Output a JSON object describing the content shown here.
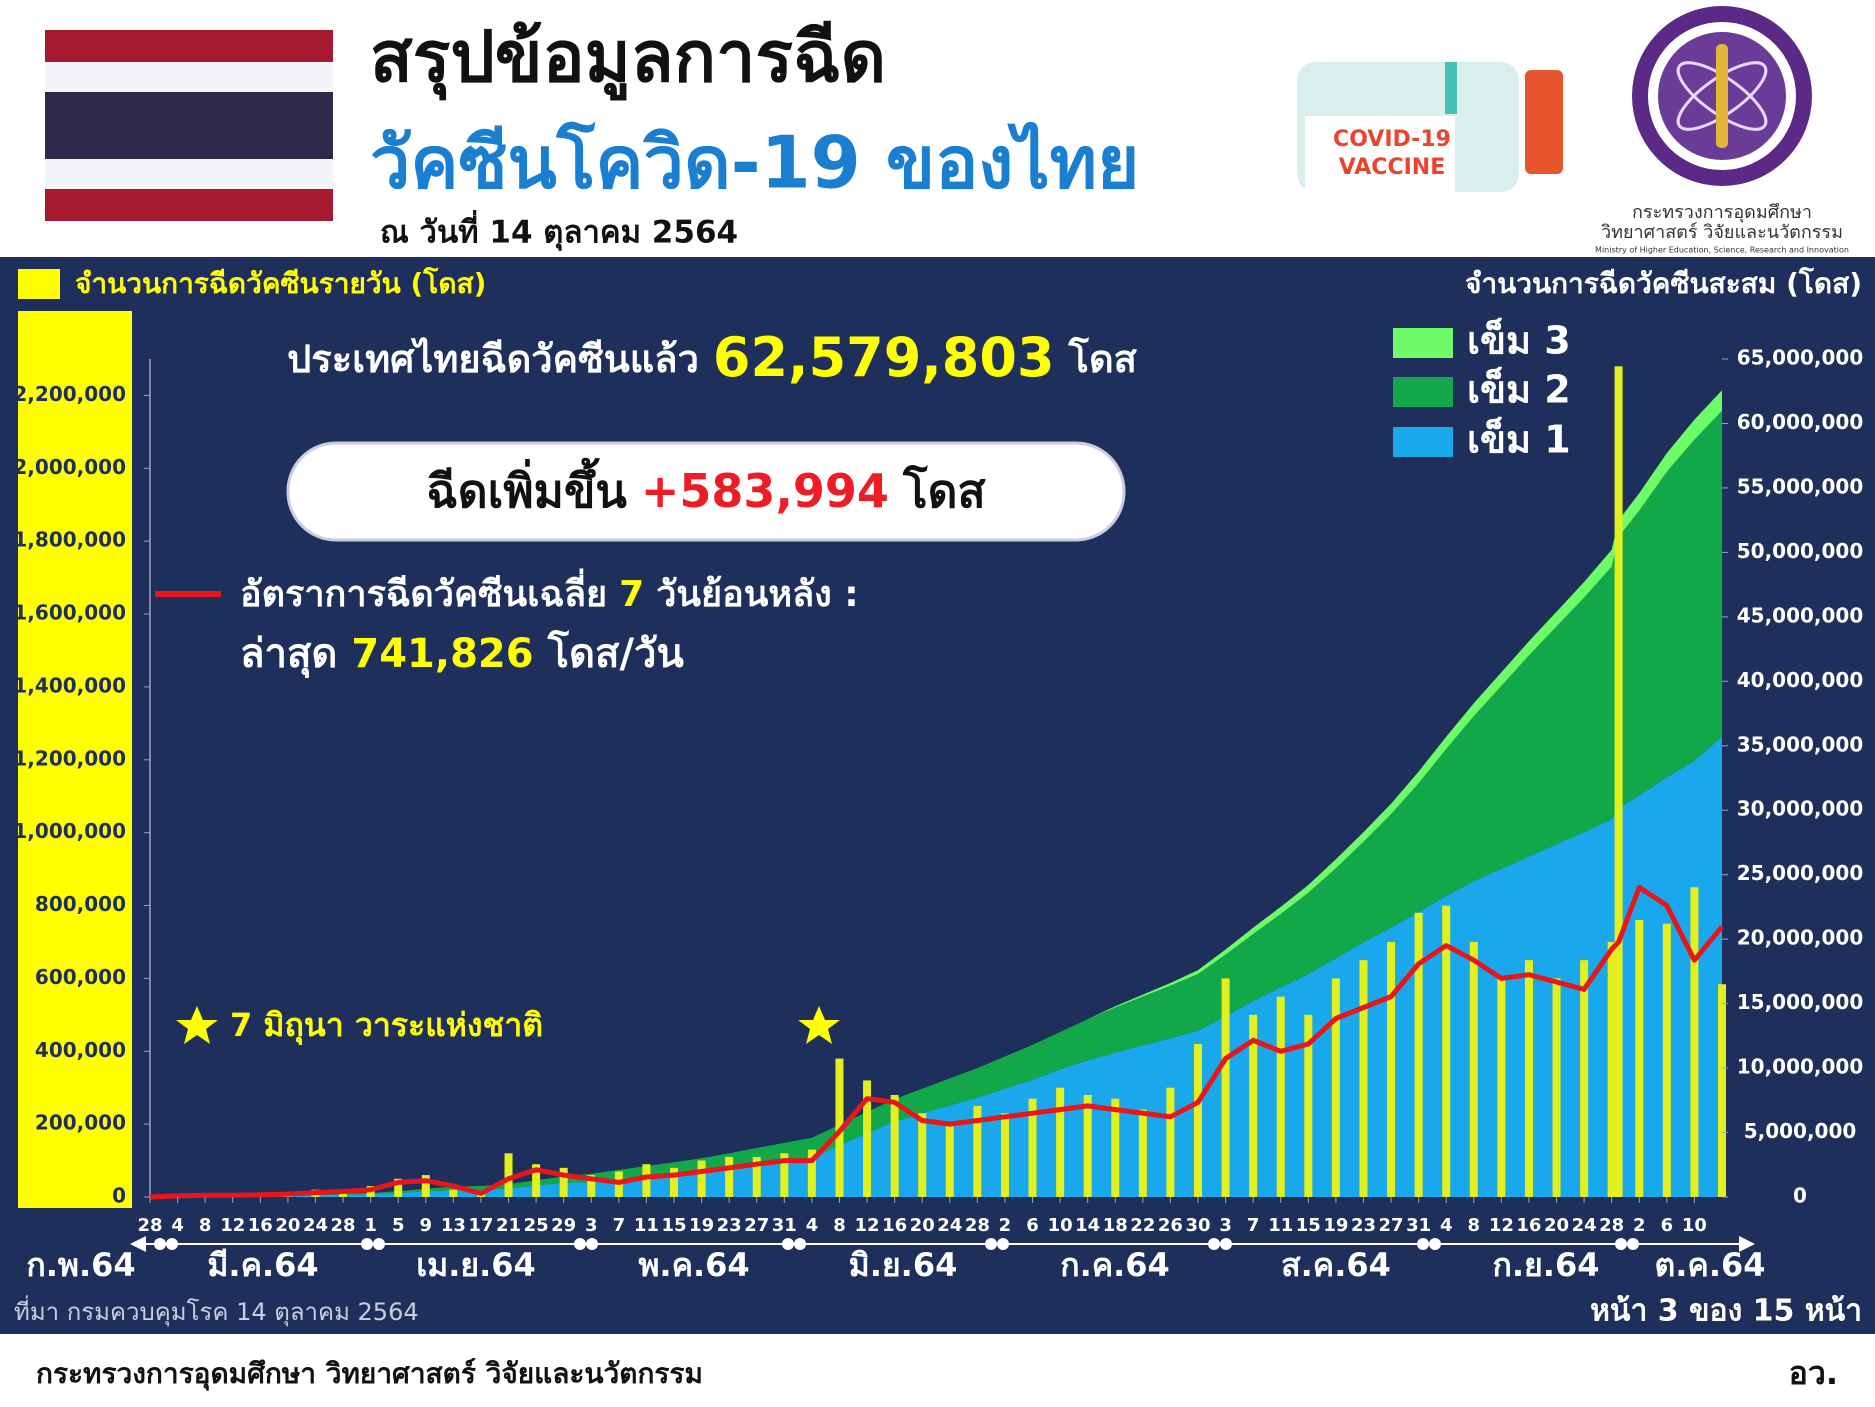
{
  "header": {
    "title": "สรุปข้อมูลการฉีด",
    "subtitle": "วัคซีนโควิด-19 ของไทย",
    "date": "ณ วันที่ 14 ตุลาคม 2564",
    "vaccine_label": [
      "COVID-19",
      "VACCINE"
    ],
    "ministry_th": [
      "กระทรวงการอุดมศึกษา",
      "วิทยาศาสตร์ วิจัยและนวัตกรรม"
    ],
    "ministry_en": "Ministry of Higher Education, Science, Research and Innovation"
  },
  "footer": {
    "ministry": "กระทรวงการอุดมศึกษา วิทยาศาสตร์ วิจัยและนวัตกรรม",
    "abbr": "อว."
  },
  "chart_data": {
    "type": "combo",
    "total_text": [
      "ประเทศไทยฉีดวัคซีนแล้ว",
      "62,579,803",
      "โดส"
    ],
    "increase_text": [
      "ฉีดเพิ่มขึ้น",
      "+583,994",
      "โดส"
    ],
    "avg_label": [
      "อัตราการฉีดวัคซีนเฉลี่ย",
      "7",
      "วันย้อนหลัง :"
    ],
    "latest_text": [
      "ล่าสุด",
      "741,826",
      "โดส/วัน"
    ],
    "star_note": "7 มิถุนา วาระแห่งชาติ",
    "source": "ที่มา กรมควบคุมโรค 14 ตุลาคม 2564",
    "page": "หน้า 3 ของ 15 หน้า",
    "y2_label": "จำนวนการฉีดวัคซีนสะสม (โดส)",
    "month_labels": [
      "ก.พ.64",
      "มี.ค.64",
      "เม.ย.64",
      "พ.ค.64",
      "มิ.ย.64",
      "ก.ค.64",
      "ส.ค.64",
      "ก.ย.64",
      "ต.ค.64"
    ],
    "x": [
      0,
      4,
      8,
      12,
      16,
      20,
      24,
      28,
      32,
      36,
      40,
      44,
      48,
      52,
      56,
      60,
      64,
      68,
      72,
      76,
      80,
      84,
      88,
      92,
      96,
      100,
      104,
      108,
      112,
      116,
      120,
      124,
      128,
      132,
      136,
      140,
      144,
      148,
      152,
      156,
      160,
      164,
      168,
      172,
      176,
      180,
      184,
      188,
      192,
      196,
      200,
      204,
      208,
      212,
      213,
      216,
      220,
      224,
      228
    ],
    "xlim": [
      0,
      228
    ],
    "xticks": [
      {
        "value": 0,
        "label": "28"
      },
      {
        "value": 4,
        "label": "4"
      },
      {
        "value": 8,
        "label": "8"
      },
      {
        "value": 12,
        "label": "12"
      },
      {
        "value": 16,
        "label": "16"
      },
      {
        "value": 20,
        "label": "20"
      },
      {
        "value": 24,
        "label": "24"
      },
      {
        "value": 28,
        "label": "28"
      },
      {
        "value": 32,
        "label": "1"
      },
      {
        "value": 36,
        "label": "5"
      },
      {
        "value": 40,
        "label": "9"
      },
      {
        "value": 44,
        "label": "13"
      },
      {
        "value": 48,
        "label": "17"
      },
      {
        "value": 52,
        "label": "21"
      },
      {
        "value": 56,
        "label": "25"
      },
      {
        "value": 60,
        "label": "29"
      },
      {
        "value": 64,
        "label": "3"
      },
      {
        "value": 68,
        "label": "7"
      },
      {
        "value": 72,
        "label": "11"
      },
      {
        "value": 76,
        "label": "15"
      },
      {
        "value": 80,
        "label": "19"
      },
      {
        "value": 84,
        "label": "23"
      },
      {
        "value": 88,
        "label": "27"
      },
      {
        "value": 92,
        "label": "31"
      },
      {
        "value": 96,
        "label": "4"
      },
      {
        "value": 100,
        "label": "8"
      },
      {
        "value": 104,
        "label": "12"
      },
      {
        "value": 108,
        "label": "16"
      },
      {
        "value": 112,
        "label": "20"
      },
      {
        "value": 116,
        "label": "24"
      },
      {
        "value": 120,
        "label": "28"
      },
      {
        "value": 124,
        "label": "2"
      },
      {
        "value": 128,
        "label": "6"
      },
      {
        "value": 132,
        "label": "10"
      },
      {
        "value": 136,
        "label": "14"
      },
      {
        "value": 140,
        "label": "18"
      },
      {
        "value": 144,
        "label": "22"
      },
      {
        "value": 148,
        "label": "26"
      },
      {
        "value": 152,
        "label": "30"
      },
      {
        "value": 156,
        "label": "3"
      },
      {
        "value": 160,
        "label": "7"
      },
      {
        "value": 164,
        "label": "11"
      },
      {
        "value": 168,
        "label": "15"
      },
      {
        "value": 172,
        "label": "19"
      },
      {
        "value": 176,
        "label": "23"
      },
      {
        "value": 180,
        "label": "27"
      },
      {
        "value": 184,
        "label": "31"
      },
      {
        "value": 188,
        "label": "4"
      },
      {
        "value": 192,
        "label": "8"
      },
      {
        "value": 196,
        "label": "12"
      },
      {
        "value": 200,
        "label": "16"
      },
      {
        "value": 204,
        "label": "20"
      },
      {
        "value": 208,
        "label": "24"
      },
      {
        "value": 212,
        "label": "28"
      },
      {
        "value": 216,
        "label": "2"
      },
      {
        "value": 220,
        "label": "6"
      },
      {
        "value": 224,
        "label": "10"
      }
    ],
    "ylim": [
      0,
      2300000
    ],
    "yticks": [
      0,
      {
        "value": 200000,
        "label": "200,000"
      },
      {
        "value": 400000,
        "label": "400,000"
      },
      {
        "value": 600000,
        "label": "600,000"
      },
      {
        "value": 800000,
        "label": "800,000"
      },
      {
        "value": 1000000,
        "label": "1,000,000"
      },
      {
        "value": 1200000,
        "label": "1,200,000"
      },
      {
        "value": 1400000,
        "label": "1,400,000"
      },
      {
        "value": 1600000,
        "label": "1,600,000"
      },
      {
        "value": 1800000,
        "label": "1,800,000"
      },
      {
        "value": 2000000,
        "label": "2,000,000"
      },
      {
        "value": 2200000,
        "label": "2,200,000"
      }
    ],
    "y2lim": [
      0,
      65000000
    ],
    "y2ticks": [
      0,
      {
        "value": 5000000,
        "label": "5,000,000"
      },
      {
        "value": 10000000,
        "label": "10,000,000"
      },
      {
        "value": 15000000,
        "label": "15,000,000"
      },
      {
        "value": 20000000,
        "label": "20,000,000"
      },
      {
        "value": 25000000,
        "label": "25,000,000"
      },
      {
        "value": 30000000,
        "label": "30,000,000"
      },
      {
        "value": 35000000,
        "label": "35,000,000"
      },
      {
        "value": 40000000,
        "label": "40,000,000"
      },
      {
        "value": 45000000,
        "label": "45,000,000"
      },
      {
        "value": 50000000,
        "label": "50,000,000"
      },
      {
        "value": 55000000,
        "label": "55,000,000"
      },
      {
        "value": 60000000,
        "label": "60,000,000"
      },
      {
        "value": 65000000,
        "label": "65,000,000"
      }
    ],
    "series": [
      {
        "name": "จำนวนการฉีดวัคซีนรายวัน (โดส)",
        "type": "bar",
        "color": "#e3f01e",
        "values": [
          0,
          2000,
          5000,
          5000,
          8000,
          8000,
          20000,
          20000,
          30000,
          50000,
          60000,
          20000,
          10000,
          120000,
          90000,
          80000,
          60000,
          70000,
          90000,
          80000,
          100000,
          110000,
          110000,
          120000,
          130000,
          380000,
          320000,
          280000,
          230000,
          200000,
          250000,
          230000,
          270000,
          300000,
          280000,
          270000,
          240000,
          300000,
          420000,
          600000,
          500000,
          550000,
          500000,
          600000,
          650000,
          700000,
          780000,
          800000,
          700000,
          600000,
          650000,
          600000,
          650000,
          700000,
          2280000,
          760000,
          750000,
          850000,
          583994
        ]
      },
      {
        "type": "line",
        "color": "#e8151b",
        "values": [
          0,
          3000,
          5000,
          5000,
          6000,
          8000,
          12000,
          15000,
          20000,
          40000,
          45000,
          30000,
          10000,
          50000,
          75000,
          60000,
          50000,
          40000,
          55000,
          60000,
          70000,
          80000,
          90000,
          100000,
          100000,
          180000,
          270000,
          260000,
          210000,
          200000,
          210000,
          220000,
          230000,
          240000,
          250000,
          240000,
          230000,
          220000,
          260000,
          380000,
          430000,
          400000,
          420000,
          490000,
          520000,
          550000,
          640000,
          690000,
          650000,
          600000,
          610000,
          590000,
          570000,
          680000,
          700000,
          850000,
          800000,
          650000,
          741826
        ]
      },
      {
        "name": "เข็ม 1",
        "type": "area",
        "axis": "y2",
        "color": "#1aa8ec",
        "values": [
          30000,
          50000,
          70000,
          90000,
          110000,
          130000,
          150000,
          170000,
          210000,
          300000,
          450000,
          520000,
          550000,
          670000,
          900000,
          1100000,
          1150000,
          1300000,
          1450000,
          1650000,
          1850000,
          2150000,
          2450000,
          2750000,
          3050000,
          4000000,
          4950000,
          5850000,
          6500000,
          7100000,
          7700000,
          8400000,
          9100000,
          9900000,
          10600000,
          11200000,
          11750000,
          12300000,
          12900000,
          14000000,
          15200000,
          16250000,
          17300000,
          18500000,
          19750000,
          20900000,
          22100000,
          23350000,
          24500000,
          25450000,
          26400000,
          27350000,
          28300000,
          29300000,
          30200000,
          31150000,
          32550000,
          33850000,
          35700000
        ]
      },
      {
        "name": "เข็ม 2",
        "type": "area",
        "axis": "y2",
        "color": "#12a84a",
        "values": [
          0,
          0,
          0,
          10000,
          20000,
          30000,
          50000,
          80000,
          110000,
          150000,
          200000,
          280000,
          300000,
          330000,
          400000,
          500000,
          650000,
          800000,
          950000,
          1050000,
          1150000,
          1250000,
          1350000,
          1450000,
          1550000,
          1600000,
          1650000,
          1750000,
          1900000,
          2100000,
          2300000,
          2500000,
          2700000,
          2900000,
          3200000,
          3500000,
          3800000,
          4100000,
          4400000,
          4800000,
          5200000,
          5700000,
          6300000,
          7000000,
          7800000,
          8800000,
          10000000,
          11400000,
          12800000,
          14200000,
          15600000,
          16900000,
          18200000,
          19600000,
          21000000,
          22100000,
          23700000,
          24900000,
          25280000
        ]
      },
      {
        "name": "เข็ม 3",
        "type": "area",
        "axis": "y2",
        "color": "#6dfb67",
        "values": [
          0,
          0,
          0,
          0,
          0,
          0,
          0,
          0,
          0,
          0,
          0,
          0,
          0,
          0,
          0,
          0,
          0,
          0,
          0,
          0,
          0,
          0,
          0,
          0,
          0,
          0,
          0,
          0,
          0,
          0,
          0,
          0,
          0,
          0,
          0,
          100000,
          150000,
          200000,
          300000,
          400000,
          500000,
          550000,
          600000,
          700000,
          750000,
          800000,
          900000,
          950000,
          1000000,
          1050000,
          1100000,
          1150000,
          1200000,
          1300000,
          1300000,
          1350000,
          1450000,
          1550000,
          1600000
        ]
      }
    ]
  }
}
